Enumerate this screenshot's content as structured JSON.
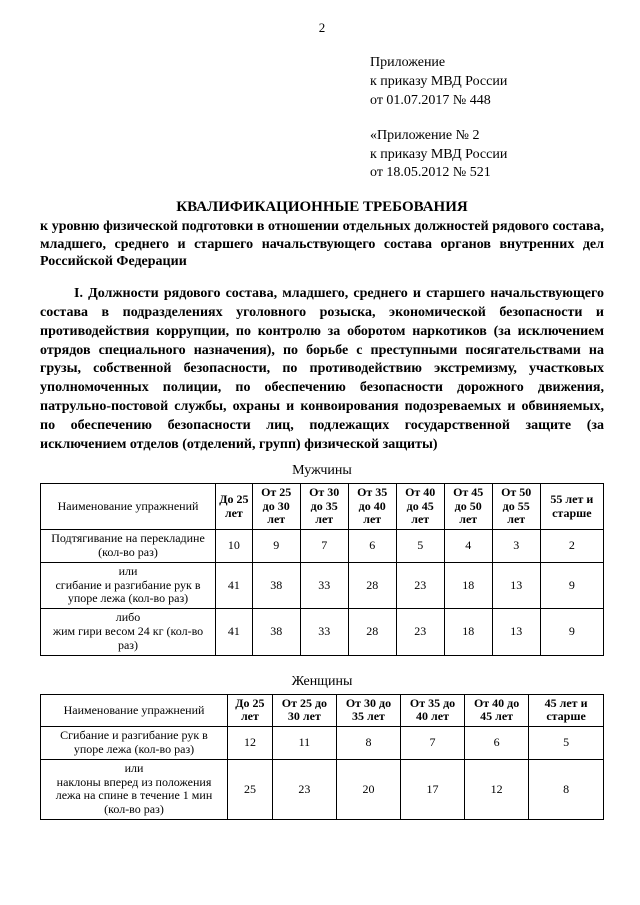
{
  "pageNumber": "2",
  "appendix1": {
    "l1": "Приложение",
    "l2": "к приказу МВД России",
    "l3": "от 01.07.2017 № 448"
  },
  "appendix2": {
    "l1": "«Приложение № 2",
    "l2": "к приказу МВД России",
    "l3": "от 18.05.2012 № 521"
  },
  "title": "КВАЛИФИКАЦИОННЫЕ ТРЕБОВАНИЯ",
  "subtitle": "к уровню физической подготовки в отношении отдельных должностей рядового состава, младшего, среднего и старшего начальствующего состава органов внутренних дел Российской Федерации",
  "section1": "I. Должности рядового состава, младшего, среднего и старшего начальствующего состава в подразделениях уголовного розыска, экономической безопасности и противодействия коррупции, по контролю за оборотом наркотиков (за исключением отрядов специального назначения), по борьбе с преступными посягательствами на грузы, собственной безопасности, по противодействию экстремизму, участковых уполномоченных полиции, по обеспечению безопасности дорожного движения, патрульно-постовой службы, охраны и конвоирования подозреваемых и обвиняемых, по обеспечению безопасности лиц, подлежащих государственной защите (за исключением отделов (отделений, групп) физической защиты)",
  "male": {
    "caption": "Мужчины",
    "headers": [
      "Наименование упражнений",
      "До 25 лет",
      "От 25 до 30 лет",
      "От 30 до 35 лет",
      "От 35 до 40 лет",
      "От 40 до 45 лет",
      "От 45 до 50 лет",
      "От 50 до 55 лет",
      "55 лет и старше"
    ],
    "rows": [
      {
        "ex": "Подтягивание на перекладине (кол-во раз)",
        "v": [
          "10",
          "9",
          "7",
          "6",
          "5",
          "4",
          "3",
          "2"
        ]
      },
      {
        "ex": "или\nсгибание и разгибание рук в упоре лежа (кол-во раз)",
        "v": [
          "41",
          "38",
          "33",
          "28",
          "23",
          "18",
          "13",
          "9"
        ]
      },
      {
        "ex": "либо\nжим гири весом 24 кг (кол-во раз)",
        "v": [
          "41",
          "38",
          "33",
          "28",
          "23",
          "18",
          "13",
          "9"
        ]
      }
    ]
  },
  "female": {
    "caption": "Женщины",
    "headers": [
      "Наименование упражнений",
      "До 25 лет",
      "От 25 до 30 лет",
      "От 30 до 35 лет",
      "От 35 до 40 лет",
      "От 40 до 45 лет",
      "45 лет и старше"
    ],
    "rows": [
      {
        "ex": "Сгибание и разгибание рук в упоре лежа (кол-во раз)",
        "v": [
          "12",
          "11",
          "8",
          "7",
          "6",
          "5"
        ]
      },
      {
        "ex": "или\nнаклоны вперед из положения лежа на спине в течение 1 мин (кол-во раз)",
        "v": [
          "25",
          "23",
          "20",
          "17",
          "12",
          "8"
        ]
      }
    ]
  }
}
